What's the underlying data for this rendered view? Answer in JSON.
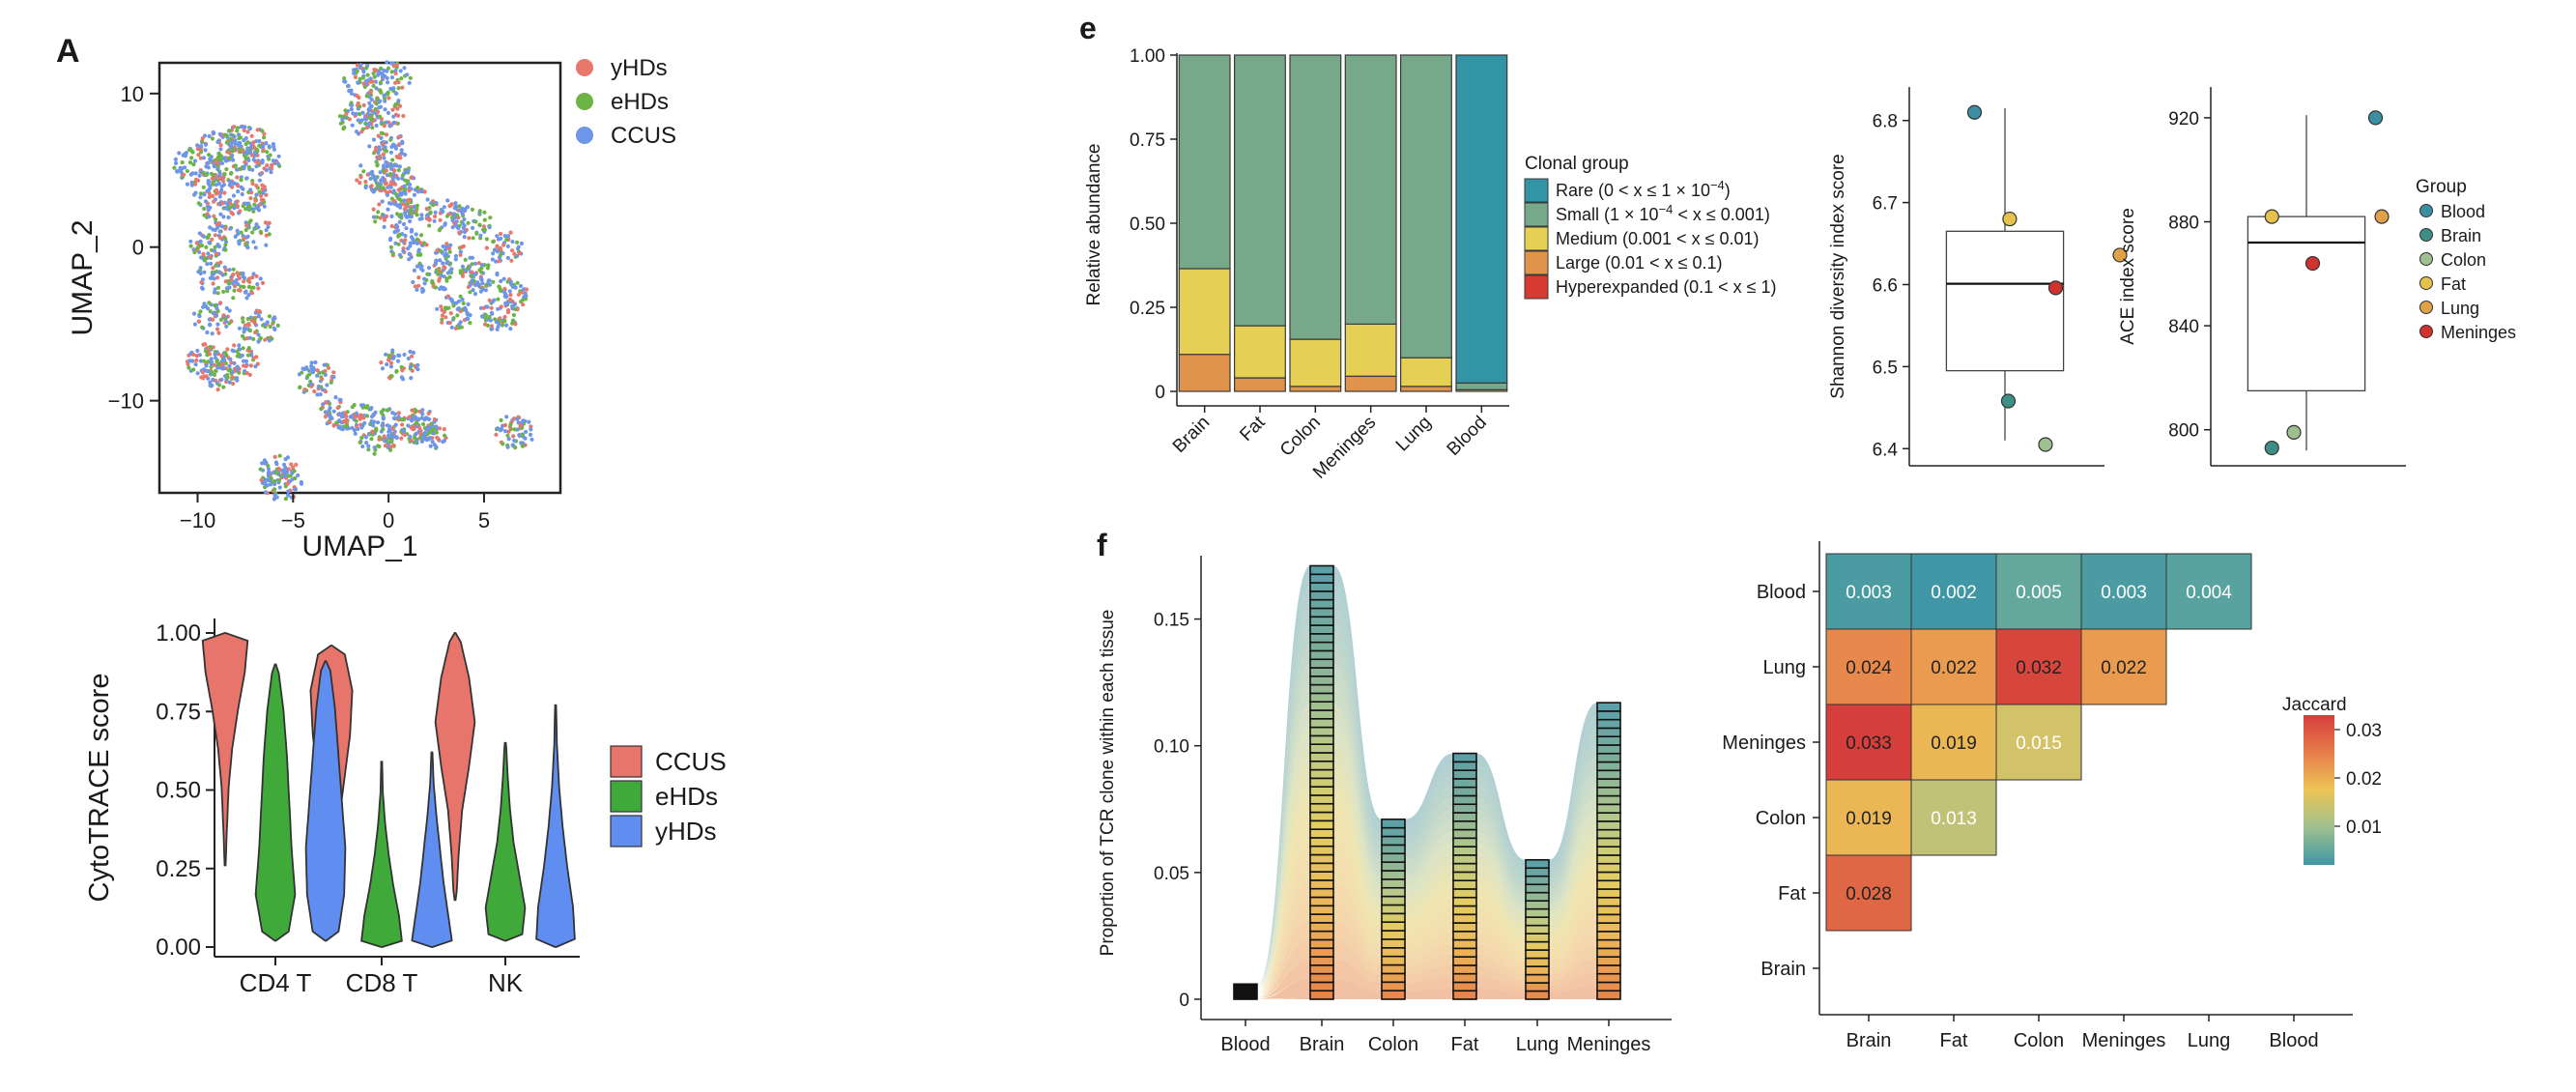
{
  "panels": {
    "A": "A",
    "e": "e",
    "f": "f"
  },
  "colors": {
    "yHDs": "#e8776c",
    "eHDs": "#6cb545",
    "CCUS": "#6f95e8",
    "violin_CCUS": "#e8756c",
    "violin_eHDs": "#3fa93a",
    "violin_yHDs": "#5f8ef0",
    "rare": "#3394a6",
    "small": "#78a88a",
    "medium": "#e5cf54",
    "large": "#e0934a",
    "hyper": "#d73a30",
    "group_Blood": "#3a8fa5",
    "group_Brain": "#3d8f86",
    "group_Colon": "#9ec08f",
    "group_Fat": "#e6c24c",
    "group_Lung": "#e0a148",
    "group_Meninges": "#d0322d"
  },
  "chart_data": [
    {
      "id": "umap",
      "type": "scatter",
      "xlabel": "UMAP_1",
      "ylabel": "UMAP_2",
      "x_ticks": [
        "−10",
        "−5",
        "0",
        "5"
      ],
      "y_ticks": [
        "10",
        "0",
        "−10"
      ],
      "xlim": [
        -12,
        9
      ],
      "ylim": [
        -16,
        12
      ],
      "legend": [
        {
          "name": "yHDs",
          "color": "#e8776c"
        },
        {
          "name": "eHDs",
          "color": "#6cb545"
        },
        {
          "name": "CCUS",
          "color": "#6f95e8"
        }
      ],
      "clusters": [
        {
          "points": [
            [
              -10.2,
              5.4
            ],
            [
              -9.0,
              6.4
            ],
            [
              -8.3,
              5.0
            ],
            [
              -9.6,
              3.8
            ],
            [
              -8.7,
              2.2
            ]
          ]
        },
        {
          "points": [
            [
              -7.5,
              7.0
            ],
            [
              -6.6,
              5.8
            ],
            [
              -7.2,
              3.4
            ],
            [
              -7.0,
              0.8
            ],
            [
              -7.6,
              -2.6
            ],
            [
              -6.8,
              -5.2
            ],
            [
              -7.8,
              -7.4
            ]
          ]
        },
        {
          "points": [
            [
              -9.4,
              0.2
            ],
            [
              -9.0,
              -2.0
            ],
            [
              -9.2,
              -4.6
            ],
            [
              -9.6,
              -7.4
            ],
            [
              -8.8,
              -8.2
            ]
          ]
        },
        {
          "points": [
            [
              -1.3,
              10.8
            ],
            [
              0.1,
              11.0
            ],
            [
              -0.2,
              8.8
            ],
            [
              0.0,
              6.4
            ],
            [
              0.3,
              4.4
            ],
            [
              1.3,
              2.8
            ],
            [
              3.0,
              2.0
            ],
            [
              4.4,
              1.6
            ],
            [
              6.0,
              0.0
            ],
            [
              6.3,
              -3.0
            ],
            [
              5.8,
              -4.4
            ],
            [
              3.5,
              -4.2
            ],
            [
              2.2,
              -2.0
            ],
            [
              1.0,
              0.2
            ],
            [
              0.2,
              2.2
            ],
            [
              -0.8,
              4.6
            ],
            [
              -1.6,
              8.4
            ],
            [
              3.4,
              -0.8
            ],
            [
              4.8,
              -2.0
            ]
          ]
        },
        {
          "points": [
            [
              -3.8,
              -8.6
            ],
            [
              -2.6,
              -10.8
            ],
            [
              -1.6,
              -11.2
            ],
            [
              0.0,
              -11.6
            ],
            [
              1.6,
              -11.6
            ],
            [
              2.0,
              -12.2
            ],
            [
              -0.6,
              -12.4
            ]
          ]
        },
        {
          "points": [
            [
              -5.8,
              -14.6
            ],
            [
              -5.6,
              -15.4
            ]
          ]
        },
        {
          "points": [
            [
              0.6,
              -7.6
            ],
            [
              6.6,
              -12.0
            ]
          ]
        }
      ],
      "ncells": 2600
    },
    {
      "id": "violin",
      "type": "violin",
      "ylabel": "CytoTRACE score",
      "categories": [
        "CD4 T",
        "CD8 T",
        "NK"
      ],
      "y_ticks": [
        "0.00",
        "0.25",
        "0.50",
        "0.75",
        "1.00"
      ],
      "ylim": [
        0,
        1
      ],
      "legend": [
        {
          "name": "CCUS",
          "color": "#e8756c"
        },
        {
          "name": "eHDs",
          "color": "#3fa93a"
        },
        {
          "name": "yHDs",
          "color": "#5f8ef0"
        }
      ],
      "series": [
        {
          "name": "CCUS",
          "groups": [
            {
              "ymin": 0.26,
              "ymax": 1.0,
              "shape": [
                0.02,
                0.08,
                0.15,
                0.3,
                0.55,
                0.85,
                1.0
              ]
            },
            {
              "ymin": 0.1,
              "ymax": 0.96,
              "shape": [
                0.05,
                0.12,
                0.3,
                0.55,
                0.8,
                0.9,
                0.5
              ]
            },
            {
              "ymin": 0.15,
              "ymax": 1.0,
              "shape": [
                0.05,
                0.15,
                0.3,
                0.6,
                0.85,
                0.6,
                0.15
              ]
            }
          ]
        },
        {
          "name": "eHDs",
          "groups": [
            {
              "ymin": 0.02,
              "ymax": 0.9,
              "shape": [
                0.5,
                0.85,
                0.7,
                0.6,
                0.5,
                0.35,
                0.1
              ]
            },
            {
              "ymin": 0.0,
              "ymax": 0.59,
              "shape": [
                0.9,
                0.75,
                0.5,
                0.3,
                0.15,
                0.05,
                0.02
              ]
            },
            {
              "ymin": 0.02,
              "ymax": 0.65,
              "shape": [
                0.7,
                0.85,
                0.6,
                0.35,
                0.2,
                0.1,
                0.03
              ]
            }
          ]
        },
        {
          "name": "yHDs",
          "groups": [
            {
              "ymin": 0.02,
              "ymax": 0.91,
              "shape": [
                0.5,
                0.8,
                0.85,
                0.7,
                0.55,
                0.4,
                0.15
              ]
            },
            {
              "ymin": 0.0,
              "ymax": 0.62,
              "shape": [
                0.9,
                0.7,
                0.5,
                0.35,
                0.2,
                0.08,
                0.02
              ]
            },
            {
              "ymin": 0.0,
              "ymax": 0.77,
              "shape": [
                0.85,
                0.75,
                0.5,
                0.3,
                0.15,
                0.06,
                0.02
              ]
            }
          ]
        }
      ]
    },
    {
      "id": "stacked",
      "type": "bar",
      "stacked": true,
      "ylabel": "Relative abundance",
      "categories": [
        "Brain",
        "Fat",
        "Colon",
        "Meninges",
        "Lung",
        "Blood"
      ],
      "y_ticks": [
        "0",
        "0.25",
        "0.50",
        "0.75",
        "1.00"
      ],
      "ylim": [
        0,
        1
      ],
      "series": [
        {
          "key": "hyper",
          "values": [
            0.0,
            0.0,
            0.0,
            0.0,
            0.0,
            0.0
          ]
        },
        {
          "key": "large",
          "values": [
            0.11,
            0.04,
            0.015,
            0.045,
            0.015,
            0.0
          ]
        },
        {
          "key": "medium",
          "values": [
            0.255,
            0.155,
            0.14,
            0.155,
            0.085,
            0.005
          ]
        },
        {
          "key": "small",
          "values": [
            0.635,
            0.805,
            0.845,
            0.8,
            0.9,
            0.02
          ]
        },
        {
          "key": "rare",
          "values": [
            0.0,
            0.0,
            0.0,
            0.0,
            0.0,
            0.975
          ]
        }
      ],
      "legend_title": "Clonal group",
      "legend": [
        {
          "key": "rare",
          "label": "Rare (0 < x ≤ 1 × 10",
          "sup": "−4",
          "tail": ")"
        },
        {
          "key": "small",
          "label": "Small (1 × 10",
          "sup": "−4",
          "tail": " < x ≤ 0.001)"
        },
        {
          "key": "medium",
          "label": "Medium (0.001 < x ≤ 0.01)",
          "sup": "",
          "tail": ""
        },
        {
          "key": "large",
          "label": "Large (0.01 < x ≤ 0.1)",
          "sup": "",
          "tail": ""
        },
        {
          "key": "hyper",
          "label": "Hyperexpanded (0.1 < x ≤ 1)",
          "sup": "",
          "tail": ""
        }
      ]
    },
    {
      "id": "shannon",
      "type": "box",
      "ylabel": "Shannon diversity index score",
      "y_ticks": [
        "6.4",
        "6.5",
        "6.6",
        "6.7",
        "6.8"
      ],
      "ylim": [
        6.385,
        6.835
      ],
      "box": {
        "q1": 6.495,
        "median": 6.601,
        "q3": 6.665,
        "lo": 6.41,
        "hi": 6.815
      },
      "points": [
        {
          "group": "Blood",
          "y": 6.81,
          "jitter": -0.45
        },
        {
          "group": "Brain",
          "y": 6.458,
          "jitter": 0.05
        },
        {
          "group": "Colon",
          "y": 6.405,
          "jitter": 0.6
        },
        {
          "group": "Fat",
          "y": 6.68,
          "jitter": 0.07
        },
        {
          "group": "Lung",
          "y": 6.636,
          "jitter": 1.7
        },
        {
          "group": "Meninges",
          "y": 6.596,
          "jitter": 0.75
        }
      ]
    },
    {
      "id": "ace",
      "type": "box",
      "ylabel": "ACE index score",
      "y_ticks": [
        "800",
        "840",
        "880",
        "920"
      ],
      "ylim": [
        788,
        930
      ],
      "box": {
        "q1": 815,
        "median": 872,
        "q3": 882,
        "lo": 792,
        "hi": 921
      },
      "points": [
        {
          "group": "Blood",
          "y": 920,
          "jitter": 1.1
        },
        {
          "group": "Brain",
          "y": 793,
          "jitter": -0.55
        },
        {
          "group": "Colon",
          "y": 799,
          "jitter": -0.2
        },
        {
          "group": "Fat",
          "y": 882,
          "jitter": -0.55
        },
        {
          "group": "Lung",
          "y": 882,
          "jitter": 1.2
        },
        {
          "group": "Meninges",
          "y": 864,
          "jitter": 0.1
        }
      ],
      "legend_title": "Group",
      "legend": [
        "Blood",
        "Brain",
        "Colon",
        "Fat",
        "Lung",
        "Meninges"
      ]
    },
    {
      "id": "alluvial",
      "type": "bar",
      "ylabel": "Proportion of TCR clone within each tissue",
      "categories": [
        "Blood",
        "Brain",
        "Colon",
        "Fat",
        "Lung",
        "Meninges"
      ],
      "y_ticks": [
        "0",
        "0.05",
        "0.10",
        "0.15"
      ],
      "ylim": [
        -0.008,
        0.175
      ],
      "values": [
        0.006,
        0.171,
        0.071,
        0.097,
        0.055,
        0.117
      ]
    },
    {
      "id": "jaccard",
      "type": "heatmap",
      "x_labels": [
        "Brain",
        "Fat",
        "Colon",
        "Meninges",
        "Lung",
        "Blood"
      ],
      "y_labels": [
        "Blood",
        "Lung",
        "Meninges",
        "Colon",
        "Fat",
        "Brain"
      ],
      "cells": [
        {
          "row": "Blood",
          "col": "Brain",
          "value": "0.003",
          "v": 0.003
        },
        {
          "row": "Blood",
          "col": "Fat",
          "value": "0.002",
          "v": 0.002
        },
        {
          "row": "Blood",
          "col": "Colon",
          "value": "0.005",
          "v": 0.005
        },
        {
          "row": "Blood",
          "col": "Meninges",
          "value": "0.003",
          "v": 0.003
        },
        {
          "row": "Blood",
          "col": "Lung",
          "value": "0.004",
          "v": 0.004
        },
        {
          "row": "Lung",
          "col": "Brain",
          "value": "0.024",
          "v": 0.024
        },
        {
          "row": "Lung",
          "col": "Fat",
          "value": "0.022",
          "v": 0.022
        },
        {
          "row": "Lung",
          "col": "Colon",
          "value": "0.032",
          "v": 0.032
        },
        {
          "row": "Lung",
          "col": "Meninges",
          "value": "0.022",
          "v": 0.022
        },
        {
          "row": "Meninges",
          "col": "Brain",
          "value": "0.033",
          "v": 0.033
        },
        {
          "row": "Meninges",
          "col": "Fat",
          "value": "0.019",
          "v": 0.019
        },
        {
          "row": "Meninges",
          "col": "Colon",
          "value": "0.015",
          "v": 0.015
        },
        {
          "row": "Colon",
          "col": "Brain",
          "value": "0.019",
          "v": 0.019
        },
        {
          "row": "Colon",
          "col": "Fat",
          "value": "0.013",
          "v": 0.013
        },
        {
          "row": "Fat",
          "col": "Brain",
          "value": "0.028",
          "v": 0.028
        }
      ],
      "legend_title": "Jaccard",
      "legend_ticks": [
        "0.03",
        "0.02",
        "0.01"
      ],
      "color_stops": [
        "#d53e3b",
        "#e67d4a",
        "#ecc456",
        "#9ec08f",
        "#3f97a5"
      ]
    }
  ]
}
